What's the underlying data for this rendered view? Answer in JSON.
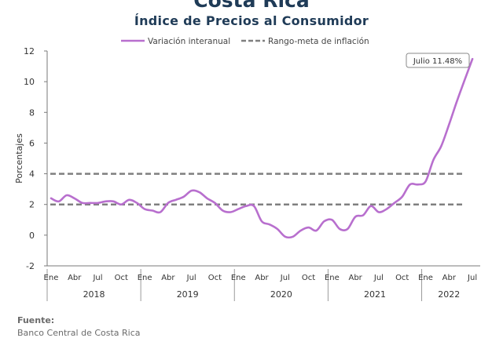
{
  "header": {
    "title": "Costa Rica",
    "subtitle": "Índice de Precios al Consumidor"
  },
  "footer": {
    "source_label": "Fuente:",
    "source_text": "Banco Central de Costa Rica"
  },
  "colors": {
    "series_line": "#b86fce",
    "target_line": "#7f7f7f",
    "title": "#1f3b57"
  },
  "chart_data": {
    "type": "line",
    "title": "Índice de Precios al Consumidor",
    "ylabel": "Porcentajes",
    "ylim": [
      -2,
      12
    ],
    "yticks": [
      -2,
      0,
      2,
      4,
      6,
      8,
      10,
      12
    ],
    "grid": false,
    "legend_position": "top",
    "x_month_labels": [
      "Ene",
      "Abr",
      "Jul",
      "Oct",
      "Ene",
      "Abr",
      "Jul",
      "Oct",
      "Ene",
      "Abr",
      "Jul",
      "Oct",
      "Ene",
      "Abr",
      "Jul",
      "Oct",
      "Ene",
      "Abr",
      "Jul"
    ],
    "x_month_label_index": [
      0,
      3,
      6,
      9,
      12,
      15,
      18,
      21,
      24,
      27,
      30,
      33,
      36,
      39,
      42,
      45,
      48,
      51,
      54
    ],
    "x_year_labels": [
      "2018",
      "2019",
      "2020",
      "2021",
      "2022"
    ],
    "x_year_start_index": [
      0,
      12,
      24,
      36,
      48
    ],
    "series": [
      {
        "name": "Variación interanual",
        "values": [
          2.4,
          2.2,
          2.6,
          2.4,
          2.1,
          2.1,
          2.1,
          2.2,
          2.2,
          2.0,
          2.3,
          2.1,
          1.7,
          1.6,
          1.5,
          2.1,
          2.3,
          2.5,
          2.9,
          2.8,
          2.4,
          2.1,
          1.6,
          1.5,
          1.7,
          1.9,
          1.9,
          0.9,
          0.7,
          0.4,
          -0.1,
          -0.1,
          0.3,
          0.5,
          0.3,
          0.9,
          1.0,
          0.4,
          0.4,
          1.2,
          1.3,
          1.9,
          1.5,
          1.7,
          2.1,
          2.5,
          3.3,
          3.3,
          3.5,
          4.9,
          5.8,
          7.2,
          8.7,
          10.1,
          11.48
        ]
      },
      {
        "name": "Rango-meta de inflación",
        "style": "dashed",
        "bounds": [
          2,
          4
        ]
      }
    ],
    "annotations": [
      {
        "text": "Julio 11.48%",
        "target_index": 54,
        "target_value": 11.48
      }
    ]
  }
}
